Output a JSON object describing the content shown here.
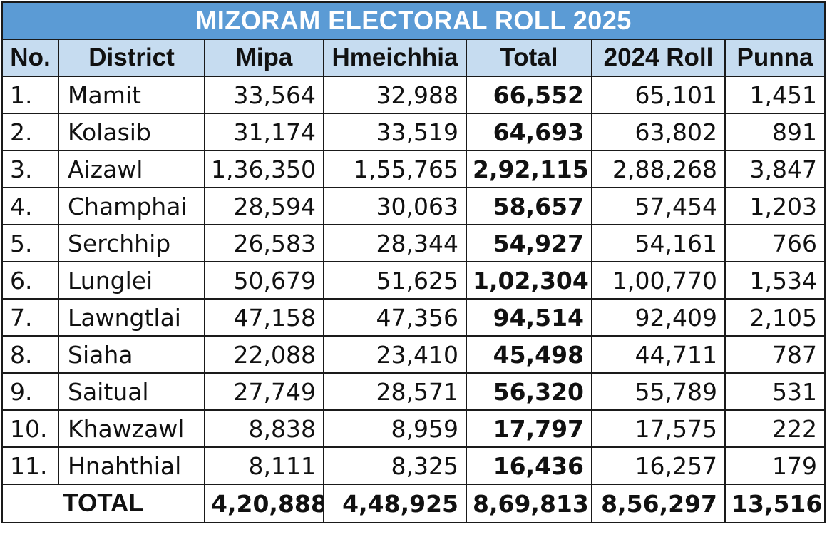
{
  "title": "MIZORAM ELECTORAL ROLL 2025",
  "headers": {
    "no": "No.",
    "district": "District",
    "mipa": "Mipa",
    "hmeichhia": "Hmeichhia",
    "total": "Total",
    "roll2024": "2024 Roll",
    "punna": "Punna"
  },
  "rows": [
    {
      "no": "1.",
      "district": "Mamit",
      "mipa": "33,564",
      "hmeichhia": "32,988",
      "total": "66,552",
      "roll2024": "65,101",
      "punna": "1,451"
    },
    {
      "no": "2.",
      "district": "Kolasib",
      "mipa": "31,174",
      "hmeichhia": "33,519",
      "total": "64,693",
      "roll2024": "63,802",
      "punna": "891"
    },
    {
      "no": "3.",
      "district": "Aizawl",
      "mipa": "1,36,350",
      "hmeichhia": "1,55,765",
      "total": "2,92,115",
      "roll2024": "2,88,268",
      "punna": "3,847"
    },
    {
      "no": "4.",
      "district": "Champhai",
      "mipa": "28,594",
      "hmeichhia": "30,063",
      "total": "58,657",
      "roll2024": "57,454",
      "punna": "1,203"
    },
    {
      "no": "5.",
      "district": "Serchhip",
      "mipa": "26,583",
      "hmeichhia": "28,344",
      "total": "54,927",
      "roll2024": "54,161",
      "punna": "766"
    },
    {
      "no": "6.",
      "district": "Lunglei",
      "mipa": "50,679",
      "hmeichhia": "51,625",
      "total": "1,02,304",
      "roll2024": "1,00,770",
      "punna": "1,534"
    },
    {
      "no": "7.",
      "district": "Lawngtlai",
      "mipa": "47,158",
      "hmeichhia": "47,356",
      "total": "94,514",
      "roll2024": "92,409",
      "punna": "2,105"
    },
    {
      "no": "8.",
      "district": "Siaha",
      "mipa": "22,088",
      "hmeichhia": "23,410",
      "total": "45,498",
      "roll2024": "44,711",
      "punna": "787"
    },
    {
      "no": "9.",
      "district": "Saitual",
      "mipa": "27,749",
      "hmeichhia": "28,571",
      "total": "56,320",
      "roll2024": "55,789",
      "punna": "531"
    },
    {
      "no": "10.",
      "district": "Khawzawl",
      "mipa": "8,838",
      "hmeichhia": "8,959",
      "total": "17,797",
      "roll2024": "17,575",
      "punna": "222"
    },
    {
      "no": "11.",
      "district": "Hnahthial",
      "mipa": "8,111",
      "hmeichhia": "8,325",
      "total": "16,436",
      "roll2024": "16,257",
      "punna": "179"
    }
  ],
  "totals": {
    "label": "TOTAL",
    "mipa": "4,20,888",
    "hmeichhia": "4,48,925",
    "total": "8,69,813",
    "roll2024": "8,56,297",
    "punna": "13,516"
  },
  "colors": {
    "title_bg": "#5b9bd5",
    "header_bg": "#c6dcf0",
    "title_text": "#ffffff",
    "border": "#1a1a1a"
  }
}
